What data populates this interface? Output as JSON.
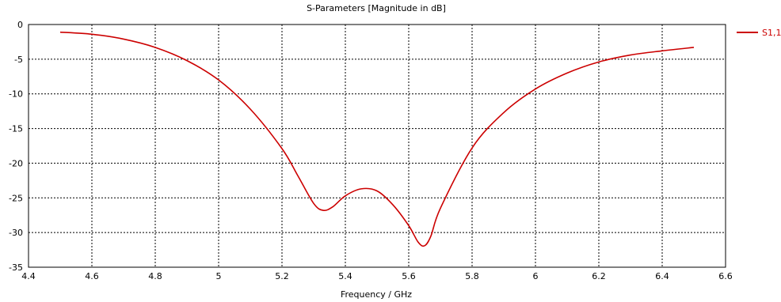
{
  "chart_data": {
    "type": "line",
    "title": "S-Parameters [Magnitude in dB]",
    "xlabel": "Frequency / GHz",
    "ylabel": "",
    "xlim": [
      4.4,
      6.6
    ],
    "ylim": [
      -35,
      0
    ],
    "xticks": [
      "4.4",
      "4.6",
      "4.8",
      "5",
      "5.2",
      "5.4",
      "5.6",
      "5.8",
      "6",
      "6.2",
      "6.4",
      "6.6"
    ],
    "yticks": [
      "0",
      "-5",
      "-10",
      "-15",
      "-20",
      "-25",
      "-30",
      "-35"
    ],
    "grid": true,
    "legend_position": "top-right",
    "series": [
      {
        "name": "S1,1",
        "color": "#cc0000",
        "x": [
          4.5,
          4.6,
          4.7,
          4.8,
          4.9,
          5.0,
          5.1,
          5.2,
          5.25,
          5.3,
          5.33,
          5.36,
          5.4,
          5.45,
          5.5,
          5.55,
          5.6,
          5.63,
          5.65,
          5.67,
          5.7,
          5.8,
          5.9,
          6.0,
          6.1,
          6.2,
          6.3,
          6.4,
          6.5
        ],
        "y": [
          -1.1,
          -1.4,
          -2.1,
          -3.3,
          -5.2,
          -8.0,
          -12.2,
          -17.9,
          -21.8,
          -25.8,
          -26.8,
          -26.3,
          -24.7,
          -23.7,
          -24.0,
          -26.0,
          -29.0,
          -31.4,
          -31.9,
          -30.5,
          -26.5,
          -17.8,
          -12.7,
          -9.3,
          -7.0,
          -5.4,
          -4.4,
          -3.8,
          -3.3
        ]
      }
    ]
  }
}
